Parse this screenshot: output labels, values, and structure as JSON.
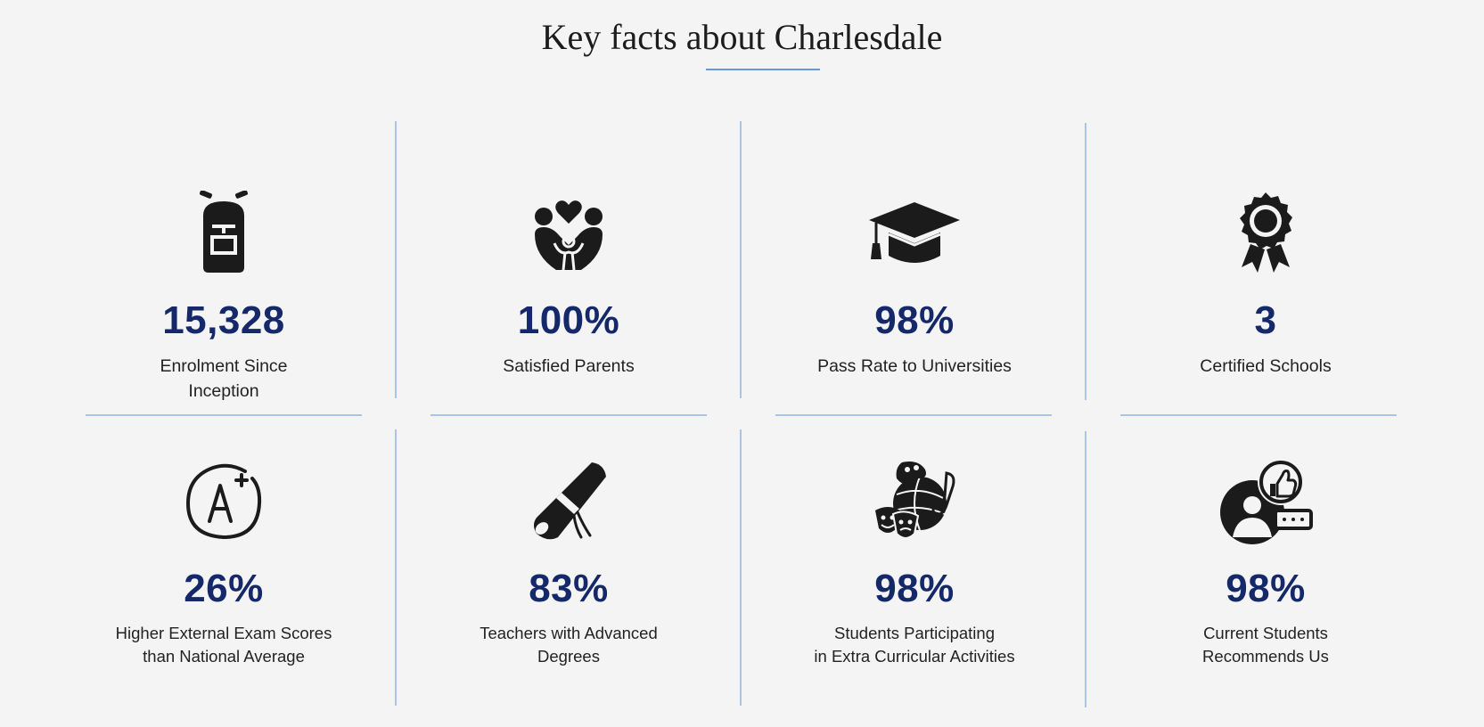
{
  "page": {
    "title": "Key facts about Charlesdale"
  },
  "facts": [
    {
      "value": "15,328",
      "label": "Enrolment Since\nInception",
      "icon": "backpack-icon"
    },
    {
      "value": "100%",
      "label": "Satisfied Parents",
      "icon": "family-love-icon"
    },
    {
      "value": "98%",
      "label": "Pass Rate to Universities",
      "icon": "graduation-cap-icon"
    },
    {
      "value": "3",
      "label": "Certified Schools",
      "icon": "award-ribbon-icon"
    },
    {
      "value": "26%",
      "label": "Higher External Exam Scores\nthan National Average",
      "icon": "a-plus-grade-icon"
    },
    {
      "value": "83%",
      "label": "Teachers with Advanced\nDegrees",
      "icon": "diploma-scroll-icon"
    },
    {
      "value": "98%",
      "label": "Students Participating\nin Extra Curricular Activities",
      "icon": "extracurricular-activities-icon"
    },
    {
      "value": "98%",
      "label": "Current Students\nRecommends Us",
      "icon": "thumbs-up-feedback-icon"
    }
  ],
  "colors": {
    "accent": "#6b97d8",
    "value": "#15296a",
    "background": "#f4f4f4",
    "icon": "#1b1b1b"
  }
}
